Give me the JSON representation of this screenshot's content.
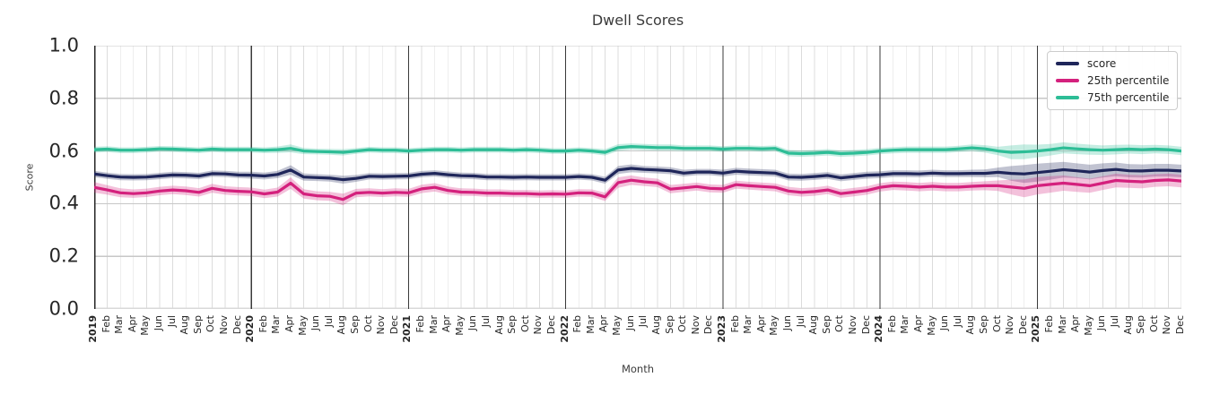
{
  "chart_data": {
    "type": "line",
    "title": "Dwell Scores",
    "xlabel": "Month",
    "ylabel": "Score",
    "ylim": [
      0.0,
      1.0
    ],
    "yticks": [
      "0.0",
      "0.2",
      "0.4",
      "0.6",
      "0.8",
      "1.0"
    ],
    "grid": true,
    "legend_position": "upper right",
    "x_tick_labels": [
      "2019",
      "Feb",
      "Mar",
      "Apr",
      "May",
      "Jun",
      "Jul",
      "Aug",
      "Sep",
      "Oct",
      "Nov",
      "Dec",
      "2020",
      "Feb",
      "Mar",
      "Apr",
      "May",
      "Jun",
      "Jul",
      "Aug",
      "Sep",
      "Oct",
      "Nov",
      "Dec",
      "2021",
      "Feb",
      "Mar",
      "Apr",
      "May",
      "Jun",
      "Jul",
      "Aug",
      "Sep",
      "Oct",
      "Nov",
      "Dec",
      "2022",
      "Feb",
      "Mar",
      "Apr",
      "May",
      "Jun",
      "Jul",
      "Aug",
      "Sep",
      "Oct",
      "Nov",
      "Dec",
      "2023",
      "Feb",
      "Mar",
      "Apr",
      "May",
      "Jun",
      "Jul",
      "Aug",
      "Sep",
      "Oct",
      "Nov",
      "Dec",
      "2024",
      "Feb",
      "Mar",
      "Apr",
      "May",
      "Jun",
      "Jul",
      "Aug",
      "Sep",
      "Oct",
      "Nov",
      "Dec",
      "2025",
      "Feb",
      "Mar",
      "Apr",
      "May",
      "Jun",
      "Jul",
      "Aug",
      "Sep",
      "Oct",
      "Nov",
      "Dec"
    ],
    "series": [
      {
        "name": "score",
        "color": "#1f265a",
        "values": [
          0.513,
          0.506,
          0.501,
          0.5,
          0.501,
          0.505,
          0.509,
          0.508,
          0.505,
          0.514,
          0.513,
          0.509,
          0.508,
          0.505,
          0.511,
          0.528,
          0.501,
          0.499,
          0.497,
          0.491,
          0.496,
          0.504,
          0.503,
          0.504,
          0.505,
          0.512,
          0.515,
          0.51,
          0.506,
          0.505,
          0.501,
          0.501,
          0.5,
          0.501,
          0.5,
          0.5,
          0.5,
          0.503,
          0.5,
          0.489,
          0.528,
          0.534,
          0.53,
          0.528,
          0.525,
          0.516,
          0.52,
          0.52,
          0.516,
          0.523,
          0.52,
          0.518,
          0.516,
          0.501,
          0.5,
          0.503,
          0.507,
          0.498,
          0.503,
          0.508,
          0.51,
          0.514,
          0.514,
          0.513,
          0.516,
          0.514,
          0.514,
          0.515,
          0.515,
          0.519,
          0.515,
          0.513,
          0.518,
          0.523,
          0.529,
          0.525,
          0.52,
          0.526,
          0.53,
          0.525,
          0.524,
          0.527,
          0.527,
          0.524
        ],
        "ci": [
          0.012,
          0.012,
          0.012,
          0.012,
          0.012,
          0.012,
          0.012,
          0.012,
          0.012,
          0.012,
          0.012,
          0.012,
          0.013,
          0.013,
          0.014,
          0.018,
          0.014,
          0.013,
          0.013,
          0.015,
          0.013,
          0.012,
          0.012,
          0.012,
          0.012,
          0.012,
          0.012,
          0.012,
          0.012,
          0.012,
          0.012,
          0.012,
          0.012,
          0.012,
          0.012,
          0.012,
          0.012,
          0.012,
          0.012,
          0.013,
          0.015,
          0.015,
          0.013,
          0.013,
          0.013,
          0.013,
          0.012,
          0.012,
          0.013,
          0.013,
          0.013,
          0.013,
          0.013,
          0.013,
          0.013,
          0.013,
          0.013,
          0.013,
          0.013,
          0.013,
          0.013,
          0.013,
          0.013,
          0.013,
          0.013,
          0.013,
          0.013,
          0.014,
          0.015,
          0.018,
          0.028,
          0.034,
          0.034,
          0.032,
          0.03,
          0.028,
          0.028,
          0.027,
          0.026,
          0.025,
          0.025,
          0.024,
          0.024,
          0.024
        ]
      },
      {
        "name": "25th percentile",
        "color": "#d4217d",
        "values": [
          0.462,
          0.452,
          0.441,
          0.438,
          0.441,
          0.448,
          0.452,
          0.449,
          0.443,
          0.458,
          0.45,
          0.447,
          0.445,
          0.437,
          0.444,
          0.478,
          0.437,
          0.43,
          0.428,
          0.416,
          0.44,
          0.443,
          0.44,
          0.443,
          0.441,
          0.456,
          0.462,
          0.45,
          0.444,
          0.443,
          0.44,
          0.44,
          0.438,
          0.438,
          0.436,
          0.437,
          0.436,
          0.441,
          0.44,
          0.426,
          0.48,
          0.489,
          0.483,
          0.479,
          0.455,
          0.46,
          0.465,
          0.458,
          0.456,
          0.472,
          0.468,
          0.465,
          0.462,
          0.448,
          0.443,
          0.446,
          0.452,
          0.438,
          0.444,
          0.45,
          0.462,
          0.468,
          0.466,
          0.463,
          0.466,
          0.463,
          0.463,
          0.466,
          0.468,
          0.468,
          0.463,
          0.458,
          0.468,
          0.473,
          0.478,
          0.473,
          0.468,
          0.478,
          0.488,
          0.485,
          0.483,
          0.488,
          0.49,
          0.486
        ],
        "ci": [
          0.02,
          0.018,
          0.017,
          0.016,
          0.016,
          0.016,
          0.016,
          0.016,
          0.016,
          0.017,
          0.016,
          0.016,
          0.016,
          0.016,
          0.017,
          0.022,
          0.018,
          0.017,
          0.017,
          0.022,
          0.016,
          0.015,
          0.015,
          0.015,
          0.015,
          0.016,
          0.016,
          0.015,
          0.014,
          0.014,
          0.014,
          0.014,
          0.014,
          0.014,
          0.014,
          0.014,
          0.014,
          0.014,
          0.014,
          0.016,
          0.02,
          0.018,
          0.016,
          0.016,
          0.016,
          0.015,
          0.015,
          0.015,
          0.015,
          0.015,
          0.015,
          0.015,
          0.015,
          0.016,
          0.016,
          0.016,
          0.016,
          0.016,
          0.016,
          0.016,
          0.016,
          0.016,
          0.016,
          0.016,
          0.016,
          0.016,
          0.016,
          0.016,
          0.017,
          0.02,
          0.028,
          0.034,
          0.033,
          0.031,
          0.029,
          0.028,
          0.027,
          0.026,
          0.026,
          0.025,
          0.025,
          0.024,
          0.024,
          0.024
        ]
      },
      {
        "name": "75th percentile",
        "color": "#2dbd96",
        "values": [
          0.605,
          0.607,
          0.603,
          0.603,
          0.605,
          0.608,
          0.607,
          0.605,
          0.603,
          0.607,
          0.605,
          0.605,
          0.605,
          0.603,
          0.605,
          0.61,
          0.6,
          0.598,
          0.597,
          0.595,
          0.6,
          0.605,
          0.603,
          0.603,
          0.6,
          0.603,
          0.605,
          0.605,
          0.603,
          0.605,
          0.605,
          0.605,
          0.603,
          0.605,
          0.603,
          0.6,
          0.6,
          0.603,
          0.6,
          0.595,
          0.613,
          0.617,
          0.615,
          0.613,
          0.613,
          0.61,
          0.61,
          0.61,
          0.607,
          0.61,
          0.61,
          0.608,
          0.61,
          0.592,
          0.59,
          0.592,
          0.595,
          0.59,
          0.592,
          0.595,
          0.6,
          0.603,
          0.605,
          0.605,
          0.605,
          0.605,
          0.608,
          0.612,
          0.608,
          0.6,
          0.595,
          0.597,
          0.6,
          0.605,
          0.612,
          0.608,
          0.605,
          0.603,
          0.605,
          0.607,
          0.605,
          0.607,
          0.605,
          0.6
        ],
        "ci": [
          0.011,
          0.011,
          0.011,
          0.011,
          0.011,
          0.011,
          0.011,
          0.011,
          0.011,
          0.011,
          0.011,
          0.011,
          0.011,
          0.011,
          0.012,
          0.015,
          0.012,
          0.011,
          0.011,
          0.012,
          0.011,
          0.011,
          0.011,
          0.011,
          0.011,
          0.011,
          0.011,
          0.011,
          0.011,
          0.011,
          0.011,
          0.011,
          0.011,
          0.011,
          0.011,
          0.011,
          0.011,
          0.011,
          0.011,
          0.012,
          0.013,
          0.012,
          0.012,
          0.012,
          0.012,
          0.011,
          0.011,
          0.011,
          0.011,
          0.011,
          0.011,
          0.011,
          0.011,
          0.012,
          0.012,
          0.012,
          0.012,
          0.012,
          0.012,
          0.012,
          0.012,
          0.012,
          0.012,
          0.012,
          0.012,
          0.012,
          0.012,
          0.013,
          0.014,
          0.016,
          0.026,
          0.028,
          0.024,
          0.022,
          0.021,
          0.02,
          0.019,
          0.018,
          0.018,
          0.017,
          0.017,
          0.016,
          0.016,
          0.016
        ]
      }
    ],
    "colors": {
      "grid_minor": "#dcdcdc",
      "grid_major": "#c7c7c7",
      "baseline": "#d9d9d9",
      "year_line": "#3a3a3a",
      "spine": "#262626",
      "text": "#262626"
    }
  }
}
